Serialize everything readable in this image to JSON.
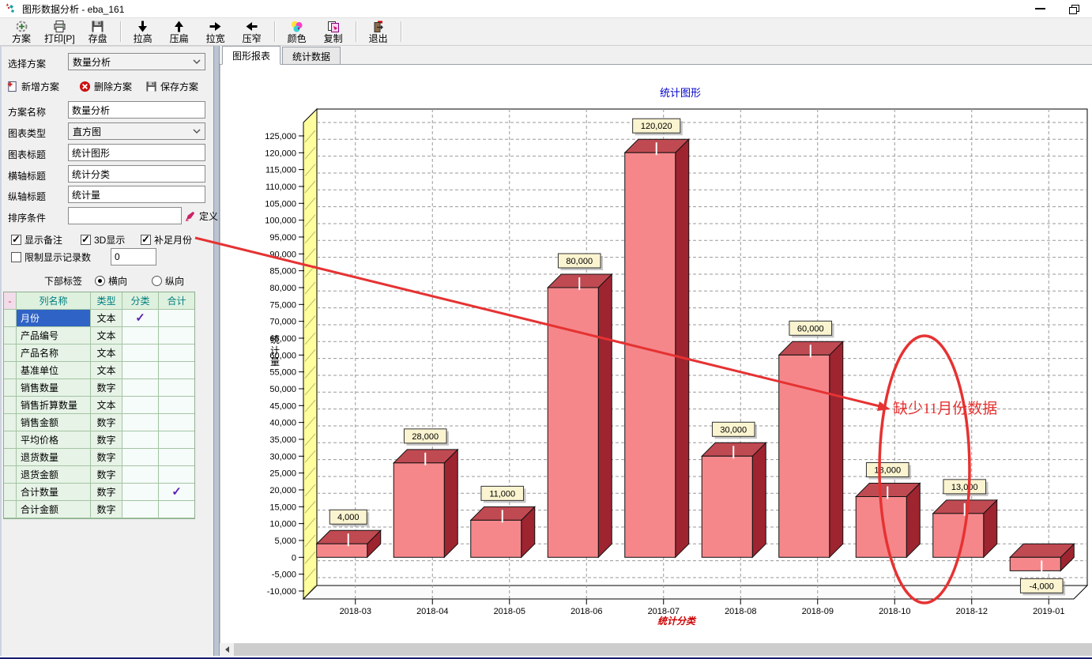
{
  "window": {
    "title": "图形数据分析 - eba_161"
  },
  "toolbar": {
    "items": [
      {
        "id": "plan",
        "label": "方案",
        "icon": "plan"
      },
      {
        "id": "print",
        "label": "打印[P]",
        "icon": "print"
      },
      {
        "id": "save",
        "label": "存盘",
        "icon": "save"
      },
      {
        "id": "stretch-tall",
        "label": "拉高",
        "icon": "arrow-down"
      },
      {
        "id": "flatten",
        "label": "压扁",
        "icon": "arrow-up"
      },
      {
        "id": "widen",
        "label": "拉宽",
        "icon": "arrow-right"
      },
      {
        "id": "narrow",
        "label": "压窄",
        "icon": "arrow-left"
      },
      {
        "id": "color",
        "label": "颜色",
        "icon": "palette"
      },
      {
        "id": "copy",
        "label": "复制",
        "icon": "copy"
      },
      {
        "id": "exit",
        "label": "退出",
        "icon": "exit"
      }
    ],
    "separators_after": [
      2,
      6,
      8,
      9
    ]
  },
  "sidebar": {
    "select_plan": {
      "label": "选择方案",
      "value": "数量分析"
    },
    "action_buttons": [
      {
        "id": "new-plan",
        "label": "新增方案",
        "icon": "new"
      },
      {
        "id": "delete-plan",
        "label": "删除方案",
        "icon": "delete"
      },
      {
        "id": "save-plan",
        "label": "保存方案",
        "icon": "floppy"
      }
    ],
    "fields": {
      "plan_name": {
        "label": "方案名称",
        "value": "数量分析"
      },
      "chart_type": {
        "label": "图表类型",
        "value": "直方图"
      },
      "chart_title": {
        "label": "图表标题",
        "value": "统计图形"
      },
      "x_title": {
        "label": "横轴标题",
        "value": "统计分类"
      },
      "y_title": {
        "label": "纵轴标题",
        "value": "统计量"
      }
    },
    "sort": {
      "label": "排序条件",
      "value": "",
      "define_label": "定义"
    },
    "checkboxes": {
      "show_note": {
        "label": "显示备注",
        "checked": true
      },
      "threed": {
        "label": "3D显示",
        "checked": true
      },
      "fill_months": {
        "label": "补足月份",
        "checked": true
      },
      "limit": {
        "label": "限制显示记录数",
        "checked": false,
        "value": "0"
      }
    },
    "bottom_labels": {
      "label": "下部标签",
      "horizontal": {
        "label": "横向",
        "selected": true
      },
      "vertical": {
        "label": "纵向",
        "selected": false
      }
    },
    "table": {
      "headers": [
        "-",
        "列名称",
        "类型",
        "分类",
        "合计"
      ],
      "rows": [
        {
          "name": "月份",
          "type": "文本",
          "category": true,
          "total": false,
          "selected": true
        },
        {
          "name": "产品编号",
          "type": "文本",
          "category": false,
          "total": false,
          "selected": false
        },
        {
          "name": "产品名称",
          "type": "文本",
          "category": false,
          "total": false,
          "selected": false
        },
        {
          "name": "基准单位",
          "type": "文本",
          "category": false,
          "total": false,
          "selected": false
        },
        {
          "name": "销售数量",
          "type": "数字",
          "category": false,
          "total": false,
          "selected": false
        },
        {
          "name": "销售折算数量",
          "type": "文本",
          "category": false,
          "total": false,
          "selected": false
        },
        {
          "name": "销售金额",
          "type": "数字",
          "category": false,
          "total": false,
          "selected": false
        },
        {
          "name": "平均价格",
          "type": "数字",
          "category": false,
          "total": false,
          "selected": false
        },
        {
          "name": "退货数量",
          "type": "数字",
          "category": false,
          "total": false,
          "selected": false
        },
        {
          "name": "退货金额",
          "type": "数字",
          "category": false,
          "total": false,
          "selected": false
        },
        {
          "name": "合计数量",
          "type": "数字",
          "category": false,
          "total": true,
          "selected": false
        },
        {
          "name": "合计金额",
          "type": "数字",
          "category": false,
          "total": false,
          "selected": false
        }
      ]
    }
  },
  "tabs": [
    {
      "label": "图形报表",
      "active": true
    },
    {
      "label": "统计数据",
      "active": false
    }
  ],
  "chart_data": {
    "type": "bar",
    "title": "统计图形",
    "xlabel": "统计分类",
    "ylabel": "统计量",
    "categories": [
      "2018-03",
      "2018-04",
      "2018-05",
      "2018-06",
      "2018-07",
      "2018-08",
      "2018-09",
      "2018-10",
      "2018-12",
      "2019-01"
    ],
    "values": [
      4000,
      28000,
      11000,
      80000,
      120020,
      30000,
      60000,
      18000,
      13000,
      -4000
    ],
    "value_labels": [
      "4,000",
      "28,000",
      "11,000",
      "80,000",
      "120,020",
      "30,000",
      "60,000",
      "18,000",
      "13,000",
      "-4,000"
    ],
    "ylim": [
      -10000,
      125000
    ],
    "ytick_step": 5000,
    "grid": true,
    "threed": true,
    "legend": "none",
    "colors": {
      "title": "#0000cc",
      "xlabel_color": "#cc0000",
      "bar_front": "#f5878b",
      "bar_top": "#c04a52",
      "bar_side": "#9e2430",
      "wall": "#ffff9e",
      "label_bg": "#fbf4d0",
      "gridline": "#9a9a9a"
    },
    "annotation": {
      "text": "缺少11月份数据",
      "color": "#e63232"
    }
  }
}
